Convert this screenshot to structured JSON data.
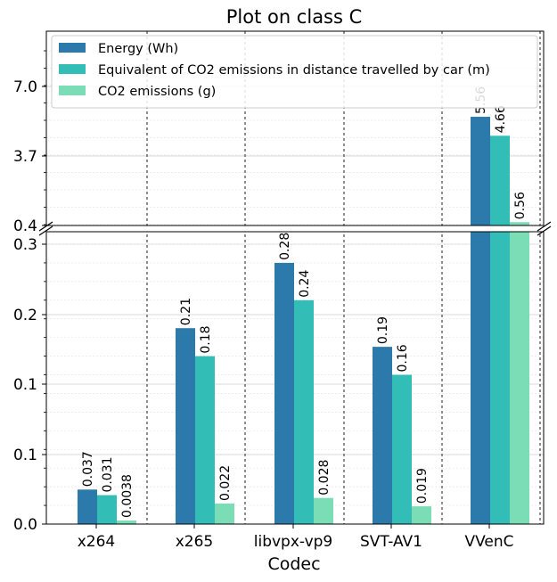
{
  "chart_data": {
    "type": "bar",
    "title": "Plot on class C",
    "xlabel": "Codec",
    "ylabel": "",
    "categories": [
      "x264",
      "x265",
      "libvpx-vp9",
      "SVT-AV1",
      "VVenC"
    ],
    "series": [
      {
        "name": "Energy (Wh)",
        "color": "#2b7aab",
        "values": [
          0.037,
          0.21,
          0.28,
          0.19,
          5.56
        ],
        "labels": [
          "0.037",
          "0.21",
          "0.28",
          "0.19",
          "5.56"
        ]
      },
      {
        "name": "Equivalent of CO2 emissions in distance travelled by car (m)",
        "color": "#33bdb7",
        "values": [
          0.031,
          0.18,
          0.24,
          0.16,
          4.66
        ],
        "labels": [
          "0.031",
          "0.18",
          "0.24",
          "0.16",
          "4.66"
        ]
      },
      {
        "name": "CO2 emissions (g)",
        "color": "#7bddb5",
        "values": [
          0.0038,
          0.022,
          0.028,
          0.019,
          0.56
        ],
        "labels": [
          "0.0038",
          "0.022",
          "0.028",
          "0.019",
          "0.56"
        ]
      }
    ],
    "axis": {
      "lower_tick_labels": [
        "0.0",
        "0.1",
        "0.1",
        "0.2",
        "0.3"
      ],
      "upper_tick_labels": [
        "0.4",
        "3.7",
        "7.0"
      ]
    },
    "y_break": true,
    "grid": true,
    "legend_position": "top-left"
  }
}
